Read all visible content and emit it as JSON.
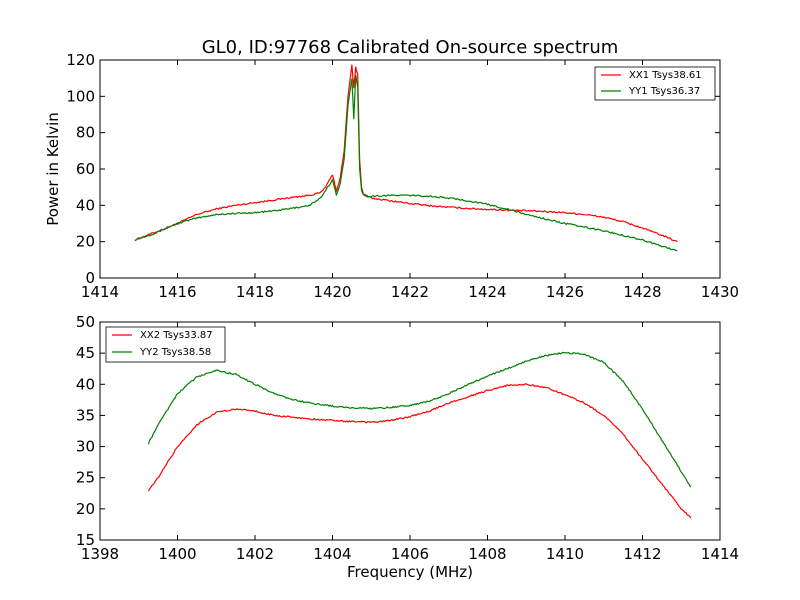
{
  "chart_data": [
    {
      "type": "line",
      "title": "GL0, ID:97768 Calibrated On-source spectrum",
      "xlabel": "",
      "ylabel": "Power in Kelvin",
      "xlim": [
        1414,
        1430
      ],
      "ylim": [
        0,
        120
      ],
      "xticks": [
        "1414",
        "1416",
        "1418",
        "1420",
        "1422",
        "1424",
        "1426",
        "1428",
        "1430"
      ],
      "yticks": [
        "0",
        "20",
        "40",
        "60",
        "80",
        "100",
        "120"
      ],
      "legend": "top-right",
      "grid": false,
      "series": [
        {
          "name": "XX1 Tsys38.61",
          "color": "#ff0000",
          "x": [
            1414.9,
            1415.4,
            1416.0,
            1416.5,
            1417.0,
            1417.5,
            1418.0,
            1418.5,
            1419.0,
            1419.4,
            1419.7,
            1419.85,
            1420.0,
            1420.1,
            1420.2,
            1420.3,
            1420.4,
            1420.5,
            1420.55,
            1420.6,
            1420.65,
            1420.7,
            1420.75,
            1420.8,
            1420.9,
            1421.0,
            1421.5,
            1422.0,
            1422.5,
            1423.0,
            1423.5,
            1424.0,
            1424.5,
            1425.0,
            1425.5,
            1426.0,
            1426.5,
            1427.0,
            1427.5,
            1428.0,
            1428.5,
            1428.9
          ],
          "y": [
            21,
            25,
            30,
            35,
            38,
            40,
            41.5,
            43,
            44.5,
            45.5,
            47,
            51,
            57,
            48,
            55,
            70,
            100,
            117,
            105,
            116,
            112,
            65,
            50,
            46,
            45,
            44,
            42.5,
            41,
            39.8,
            39,
            38.3,
            37.8,
            37.4,
            37,
            36.6,
            36,
            35,
            33.5,
            31,
            27.5,
            23.5,
            20
          ]
        },
        {
          "name": "YY1 Tsys36.37",
          "color": "#008000",
          "x": [
            1414.9,
            1415.4,
            1416.0,
            1416.5,
            1417.0,
            1417.5,
            1418.0,
            1418.5,
            1419.0,
            1419.4,
            1419.7,
            1419.85,
            1420.0,
            1420.1,
            1420.2,
            1420.3,
            1420.4,
            1420.5,
            1420.55,
            1420.6,
            1420.65,
            1420.7,
            1420.75,
            1420.8,
            1420.9,
            1421.0,
            1421.5,
            1422.0,
            1422.5,
            1423.0,
            1423.5,
            1424.0,
            1424.5,
            1425.0,
            1425.5,
            1426.0,
            1426.5,
            1427.0,
            1427.5,
            1428.0,
            1428.5,
            1428.9
          ],
          "y": [
            21,
            24.5,
            30,
            33,
            35,
            35.5,
            36,
            37,
            38.5,
            40,
            44,
            49,
            54,
            46,
            52,
            65,
            95,
            110,
            88,
            112,
            105,
            60,
            48,
            46,
            45,
            45,
            45.5,
            45.5,
            45,
            44,
            42.5,
            40.5,
            38,
            35,
            32.5,
            30,
            28,
            26,
            23.5,
            21,
            17.5,
            15
          ]
        }
      ]
    },
    {
      "type": "line",
      "title": "",
      "xlabel": "Frequency (MHz)",
      "ylabel": "",
      "xlim": [
        1398,
        1414
      ],
      "ylim": [
        15,
        50
      ],
      "xticks": [
        "1398",
        "1400",
        "1402",
        "1404",
        "1406",
        "1408",
        "1410",
        "1412",
        "1414"
      ],
      "yticks": [
        "15",
        "20",
        "25",
        "30",
        "35",
        "40",
        "45",
        "50"
      ],
      "legend": "top-left",
      "grid": false,
      "series": [
        {
          "name": "XX2 Tsys33.87",
          "color": "#ff0000",
          "x": [
            1399.25,
            1399.5,
            1400.0,
            1400.5,
            1401.0,
            1401.5,
            1402.0,
            1402.5,
            1403.0,
            1403.5,
            1404.0,
            1404.5,
            1405.0,
            1405.5,
            1406.0,
            1406.5,
            1407.0,
            1407.5,
            1408.0,
            1408.5,
            1409.0,
            1409.5,
            1410.0,
            1410.5,
            1411.0,
            1411.5,
            1412.0,
            1412.5,
            1413.0,
            1413.25
          ],
          "y": [
            23,
            25,
            30,
            33.5,
            35.5,
            36,
            35.7,
            35,
            34.7,
            34.4,
            34.2,
            34,
            33.9,
            34.2,
            34.8,
            35.7,
            37,
            38,
            39,
            39.8,
            40,
            39.5,
            38.3,
            37,
            35,
            32,
            28,
            24,
            20,
            18.5
          ]
        },
        {
          "name": "YY2 Tsys38.58",
          "color": "#008000",
          "x": [
            1399.25,
            1399.5,
            1400.0,
            1400.5,
            1401.0,
            1401.5,
            1402.0,
            1402.5,
            1403.0,
            1403.5,
            1404.0,
            1404.5,
            1405.0,
            1405.5,
            1406.0,
            1406.5,
            1407.0,
            1407.5,
            1408.0,
            1408.5,
            1409.0,
            1409.5,
            1410.0,
            1410.5,
            1411.0,
            1411.5,
            1412.0,
            1412.5,
            1413.0,
            1413.25
          ],
          "y": [
            30.5,
            33.5,
            38.5,
            41.2,
            42.2,
            41.6,
            40,
            38.5,
            37.5,
            36.9,
            36.5,
            36.2,
            36.1,
            36.3,
            36.6,
            37.3,
            38.5,
            40,
            41.3,
            42.5,
            43.7,
            44.6,
            45.1,
            44.8,
            43.5,
            40.5,
            36,
            31,
            26,
            23.5
          ]
        }
      ]
    }
  ]
}
